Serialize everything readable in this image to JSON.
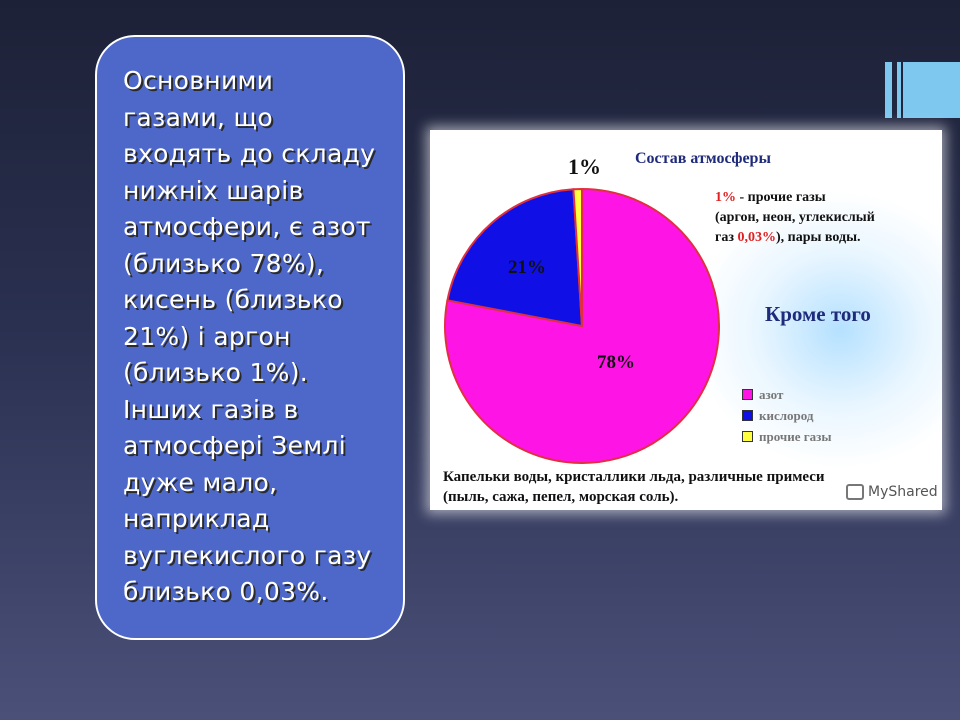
{
  "text_card": {
    "paragraph": "Основними\nгазами, що\nвходять до складу\nнижніх шарів\nатмосфери, є азот\n(близько 78%),\nкисень (близько\n21%) і аргон\n(близько 1%).\nІнших газів в\nатмосфері Землі\nдуже мало,\nнаприклад\nвуглекислого газу\nблизько 0,03%."
  },
  "chart_data": {
    "type": "pie",
    "title": "Состав атмосферы",
    "slices": [
      {
        "label": "азот",
        "value": 78,
        "display": "78%",
        "color": "#ff14e6"
      },
      {
        "label": "кислород",
        "value": 21,
        "display": "21%",
        "color": "#1010e6"
      },
      {
        "label": "прочие газы",
        "value": 1,
        "display": "1%",
        "color": "#ffff40"
      }
    ],
    "legend_placement": "bottom-right",
    "annotations": {
      "other_gases_pct": "1%",
      "other_gases_text": " - прочие газы",
      "other_gases_line2": "(аргон, неон,  углекислый",
      "other_gases_line3_a": "газ ",
      "co2_pct": "0,03%",
      "other_gases_line3_b": "), пары воды.",
      "extra_heading": "Кроме того",
      "caption_line1": "Капельки воды, кристаллики льда, различные примеси",
      "caption_line2": "(пыль, сажа, пепел, морская соль)."
    }
  },
  "watermark": {
    "text": "MyShared"
  },
  "colors": {
    "card": "#4e68c9",
    "accent": "#7ec8f0",
    "outline": "#e03040"
  }
}
